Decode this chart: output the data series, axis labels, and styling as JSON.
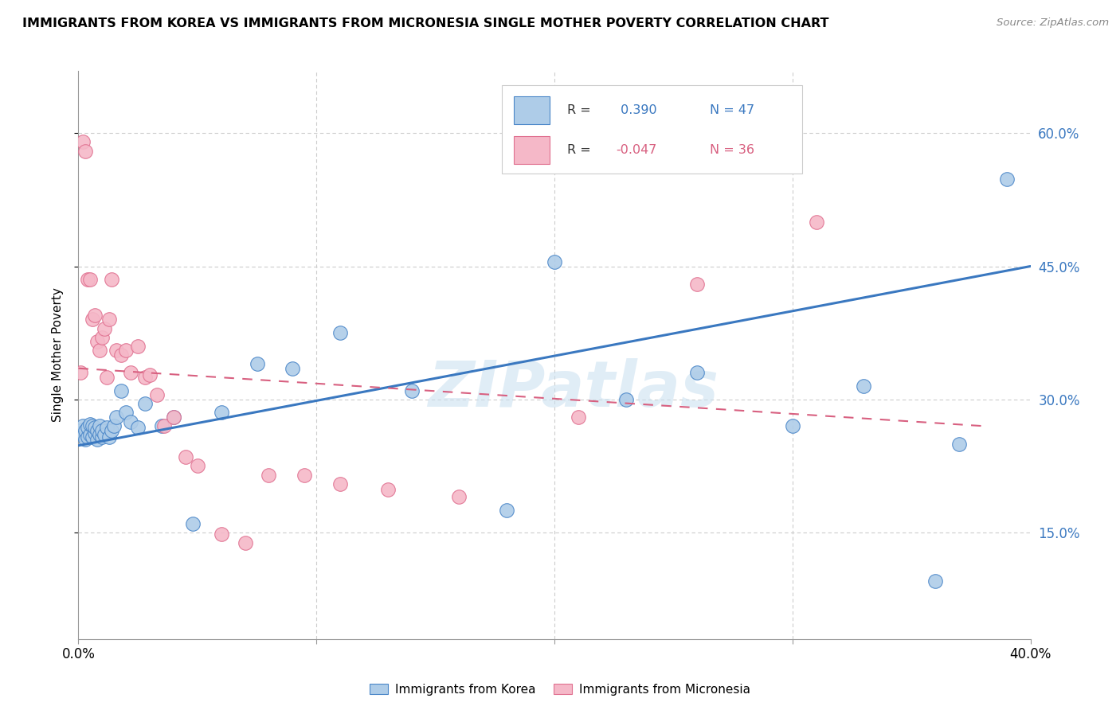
{
  "title": "IMMIGRANTS FROM KOREA VS IMMIGRANTS FROM MICRONESIA SINGLE MOTHER POVERTY CORRELATION CHART",
  "source": "Source: ZipAtlas.com",
  "ylabel": "Single Mother Poverty",
  "ytick_vals": [
    0.15,
    0.3,
    0.45,
    0.6
  ],
  "ytick_labels": [
    "15.0%",
    "30.0%",
    "45.0%",
    "60.0%"
  ],
  "xlim": [
    0.0,
    0.4
  ],
  "ylim": [
    0.03,
    0.67
  ],
  "legend_label1": "Immigrants from Korea",
  "legend_label2": "Immigrants from Micronesia",
  "r1": 0.39,
  "n1": 47,
  "r2": -0.047,
  "n2": 36,
  "color_korea_fill": "#aecce8",
  "color_korea_edge": "#4a86c8",
  "color_micronesia_fill": "#f5b8c8",
  "color_micronesia_edge": "#e07090",
  "color_korea_line": "#3a78c0",
  "color_micronesia_line": "#d86080",
  "watermark": "ZIPatlas",
  "korea_x": [
    0.001,
    0.002,
    0.002,
    0.003,
    0.003,
    0.004,
    0.004,
    0.005,
    0.005,
    0.006,
    0.006,
    0.007,
    0.007,
    0.008,
    0.008,
    0.009,
    0.009,
    0.01,
    0.01,
    0.011,
    0.012,
    0.013,
    0.014,
    0.015,
    0.016,
    0.018,
    0.02,
    0.022,
    0.025,
    0.028,
    0.035,
    0.04,
    0.048,
    0.06,
    0.075,
    0.09,
    0.11,
    0.14,
    0.18,
    0.2,
    0.23,
    0.26,
    0.3,
    0.33,
    0.36,
    0.37,
    0.39
  ],
  "korea_y": [
    0.265,
    0.26,
    0.27,
    0.255,
    0.265,
    0.258,
    0.268,
    0.26,
    0.272,
    0.258,
    0.27,
    0.262,
    0.268,
    0.255,
    0.265,
    0.26,
    0.27,
    0.258,
    0.265,
    0.26,
    0.268,
    0.258,
    0.265,
    0.27,
    0.28,
    0.31,
    0.285,
    0.275,
    0.268,
    0.295,
    0.27,
    0.28,
    0.16,
    0.285,
    0.34,
    0.335,
    0.375,
    0.31,
    0.175,
    0.455,
    0.3,
    0.33,
    0.27,
    0.315,
    0.095,
    0.25,
    0.548
  ],
  "micronesia_x": [
    0.001,
    0.002,
    0.003,
    0.004,
    0.005,
    0.006,
    0.007,
    0.008,
    0.009,
    0.01,
    0.011,
    0.012,
    0.013,
    0.014,
    0.016,
    0.018,
    0.02,
    0.022,
    0.025,
    0.028,
    0.03,
    0.033,
    0.036,
    0.04,
    0.045,
    0.05,
    0.06,
    0.07,
    0.08,
    0.095,
    0.11,
    0.13,
    0.16,
    0.21,
    0.26,
    0.31
  ],
  "micronesia_y": [
    0.33,
    0.59,
    0.58,
    0.435,
    0.435,
    0.39,
    0.395,
    0.365,
    0.355,
    0.37,
    0.38,
    0.325,
    0.39,
    0.435,
    0.355,
    0.35,
    0.355,
    0.33,
    0.36,
    0.325,
    0.328,
    0.305,
    0.27,
    0.28,
    0.235,
    0.225,
    0.148,
    0.138,
    0.215,
    0.215,
    0.205,
    0.198,
    0.19,
    0.28,
    0.43,
    0.5
  ],
  "korea_line_x": [
    0.0,
    0.4
  ],
  "korea_line_y": [
    0.248,
    0.45
  ],
  "micro_line_x": [
    0.0,
    0.38
  ],
  "micro_line_y": [
    0.335,
    0.27
  ]
}
